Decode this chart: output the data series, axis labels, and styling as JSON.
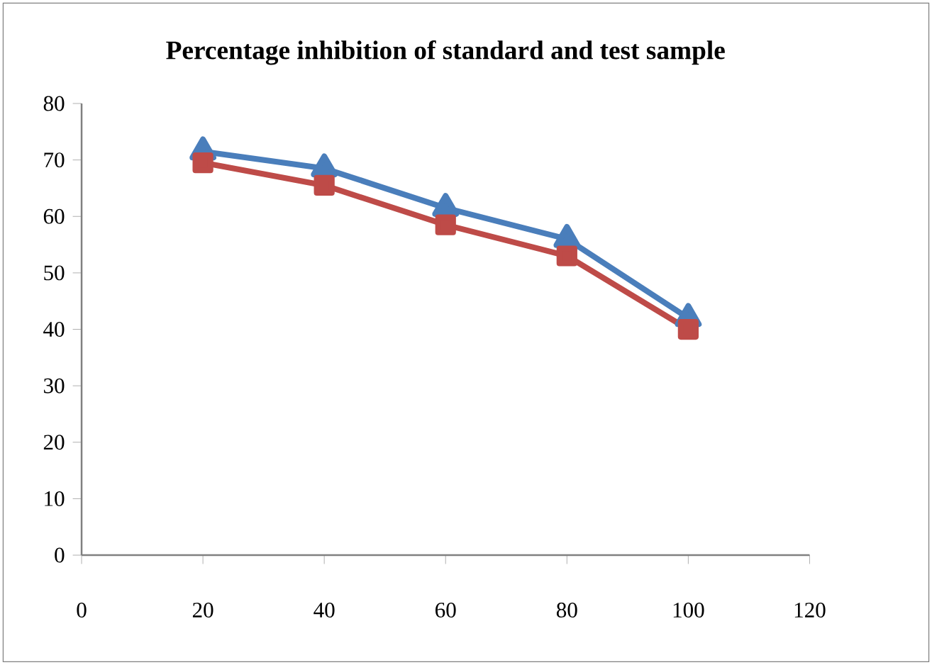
{
  "chart_data": {
    "type": "line",
    "title": "Percentage inhibition of standard and test sample",
    "x": [
      20,
      40,
      60,
      80,
      100
    ],
    "series": [
      {
        "color": "#4a7ebb",
        "marker": "triangle",
        "values": [
          71.5,
          68.5,
          61.5,
          56,
          42
        ]
      },
      {
        "color": "#be4b48",
        "marker": "square",
        "values": [
          69.5,
          65.5,
          58.5,
          53,
          40
        ]
      }
    ],
    "xlim": [
      0,
      120
    ],
    "xticks": [
      0,
      20,
      40,
      60,
      80,
      100,
      120
    ],
    "ylim": [
      0,
      80
    ],
    "yticks": [
      0,
      10,
      20,
      30,
      40,
      50,
      60,
      70,
      80
    ]
  }
}
